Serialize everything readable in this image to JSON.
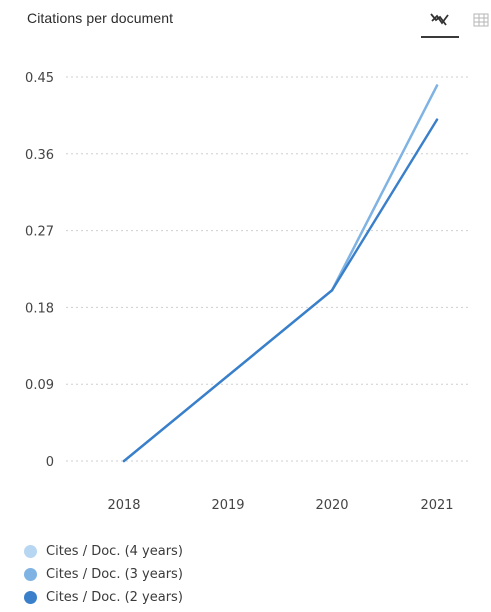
{
  "header": {
    "title": "Citations per document",
    "line_view_icon": "line-chart-icon",
    "table_view_icon": "table-grid-icon"
  },
  "chart_data": {
    "type": "line",
    "title": "Citations per document",
    "xlabel": "",
    "ylabel": "",
    "x": [
      "2018",
      "2019",
      "2020",
      "2021"
    ],
    "ylim": [
      0,
      0.45
    ],
    "yticks": [
      "0",
      "0.09",
      "0.18",
      "0.27",
      "0.36",
      "0.45"
    ],
    "grid": true,
    "legend_position": "bottom-left",
    "series": [
      {
        "name": "Cites / Doc. (4 years)",
        "values": [
          0,
          0.1,
          0.2,
          0.44
        ],
        "color": "#b7d6f2"
      },
      {
        "name": "Cites / Doc. (3 years)",
        "values": [
          0,
          0.1,
          0.2,
          0.44
        ],
        "color": "#7fb3e3"
      },
      {
        "name": "Cites / Doc. (2 years)",
        "values": [
          0,
          0.1,
          0.2,
          0.4
        ],
        "color": "#3a7fca"
      }
    ]
  }
}
